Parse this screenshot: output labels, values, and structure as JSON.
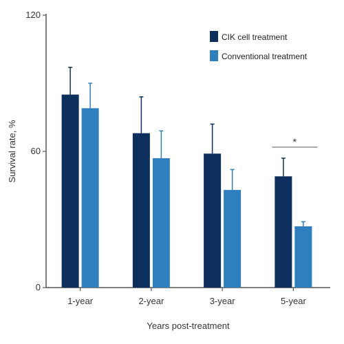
{
  "chart_data": {
    "type": "bar",
    "categories": [
      "1-year",
      "2-year",
      "3-year",
      "5-year"
    ],
    "series": [
      {
        "name": "CIK cell treatment",
        "color": "#0d2f5e",
        "values": [
          85,
          68,
          59,
          49
        ],
        "errors": [
          12,
          16,
          13,
          8
        ]
      },
      {
        "name": "Conventional treatment",
        "color": "#2e7fbd",
        "values": [
          79,
          57,
          43,
          27
        ],
        "errors": [
          11,
          12,
          9,
          2
        ]
      }
    ],
    "xlabel": "Years post-treatment",
    "ylabel": "Survival rate, %",
    "ylim": [
      0,
      120
    ],
    "yticks": [
      "0",
      "60",
      "120"
    ],
    "legend_position": "top-right",
    "significance": [
      {
        "category": "5-year",
        "label": "*"
      }
    ]
  }
}
